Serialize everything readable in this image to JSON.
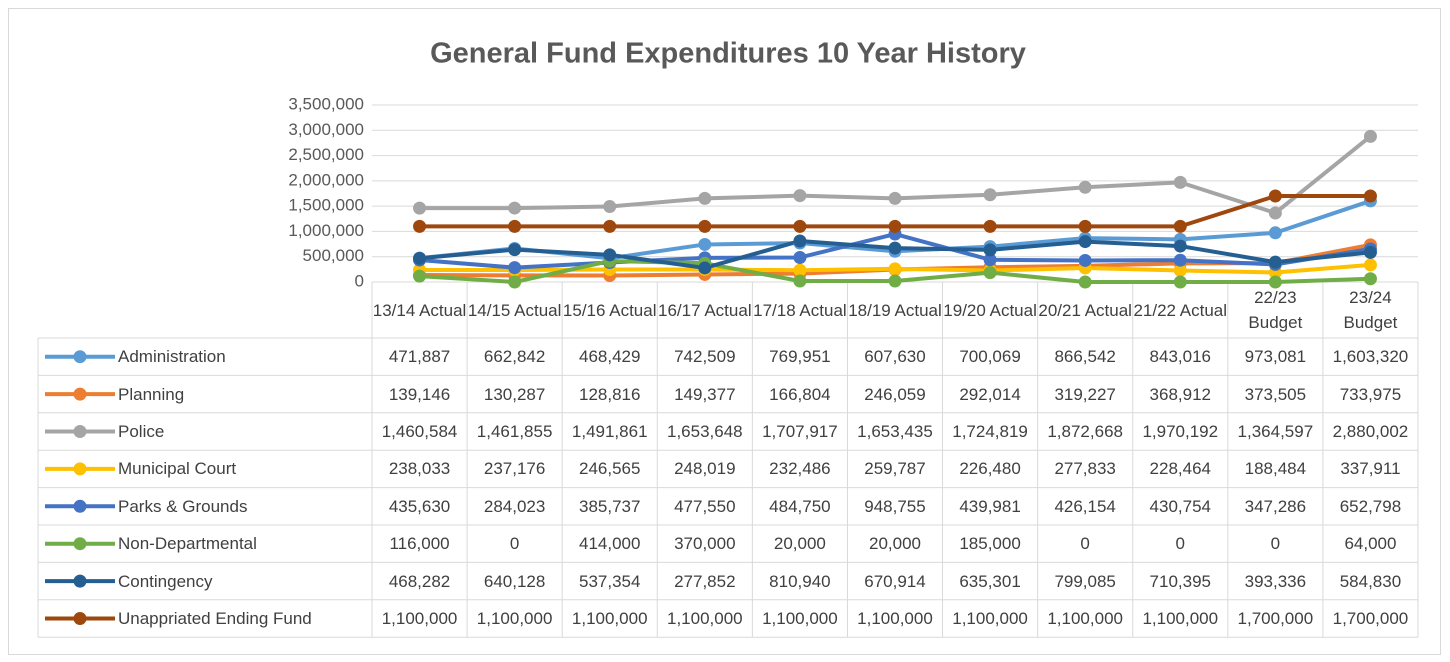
{
  "chart_data": {
    "type": "line",
    "title": "General Fund Expenditures 10 Year History",
    "categories": [
      "13/14 Actual",
      "14/15 Actual",
      "15/16 Actual",
      "16/17 Actual",
      "17/18 Actual",
      "18/19 Actual",
      "19/20 Actual",
      "20/21 Actual",
      "21/22 Actual",
      "22/23 Budget",
      "23/24 Budget"
    ],
    "ylim": [
      0,
      3500000
    ],
    "yticks": [
      0,
      {
        "value": 500000,
        "label": "500,000"
      },
      {
        "value": 1000000,
        "label": "1,000,000"
      },
      {
        "value": 1500000,
        "label": "1,500,000"
      },
      {
        "value": 2000000,
        "label": "2,000,000"
      },
      {
        "value": 2500000,
        "label": "2,500,000"
      },
      {
        "value": 3000000,
        "label": "3,000,000"
      },
      {
        "value": 3500000,
        "label": "3,500,000"
      }
    ],
    "grid": true,
    "series": [
      {
        "name": "Administration",
        "color": "#5b9bd5",
        "values": [
          471887,
          662842,
          468429,
          742509,
          769951,
          607630,
          700069,
          866542,
          843016,
          973081,
          1603320
        ],
        "value_labels": [
          "471,887",
          "662,842",
          "468,429",
          "742,509",
          "769,951",
          "607,630",
          "700,069",
          "866,542",
          "843,016",
          "973,081",
          "1,603,320"
        ]
      },
      {
        "name": "Planning",
        "color": "#ed7d31",
        "values": [
          139146,
          130287,
          128816,
          149377,
          166804,
          246059,
          292014,
          319227,
          368912,
          373505,
          733975
        ],
        "value_labels": [
          "139,146",
          "130,287",
          "128,816",
          "149,377",
          "166,804",
          "246,059",
          "292,014",
          "319,227",
          "368,912",
          "373,505",
          "733,975"
        ]
      },
      {
        "name": "Police",
        "color": "#a5a5a5",
        "values": [
          1460584,
          1461855,
          1491861,
          1653648,
          1707917,
          1653435,
          1724819,
          1872668,
          1970192,
          1364597,
          2880002
        ],
        "value_labels": [
          "1,460,584",
          "1,461,855",
          "1,491,861",
          "1,653,648",
          "1,707,917",
          "1,653,435",
          "1,724,819",
          "1,872,668",
          "1,970,192",
          "1,364,597",
          "2,880,002"
        ]
      },
      {
        "name": "Municipal Court",
        "color": "#ffc000",
        "values": [
          238033,
          237176,
          246565,
          248019,
          232486,
          259787,
          226480,
          277833,
          228464,
          188484,
          337911
        ],
        "value_labels": [
          "238,033",
          "237,176",
          "246,565",
          "248,019",
          "232,486",
          "259,787",
          "226,480",
          "277,833",
          "228,464",
          "188,484",
          "337,911"
        ]
      },
      {
        "name": "Parks & Grounds",
        "color": "#4472c4",
        "values": [
          435630,
          284023,
          385737,
          477550,
          484750,
          948755,
          439981,
          426154,
          430754,
          347286,
          652798
        ],
        "value_labels": [
          "435,630",
          "284,023",
          "385,737",
          "477,550",
          "484,750",
          "948,755",
          "439,981",
          "426,154",
          "430,754",
          "347,286",
          "652,798"
        ]
      },
      {
        "name": "Non-Departmental",
        "color": "#70ad47",
        "values": [
          116000,
          0,
          414000,
          370000,
          20000,
          20000,
          185000,
          0,
          0,
          0,
          64000
        ],
        "value_labels": [
          "116,000",
          "0",
          "414,000",
          "370,000",
          "20,000",
          "20,000",
          "185,000",
          "0",
          "0",
          "0",
          "64,000"
        ]
      },
      {
        "name": "Contingency",
        "color": "#255e91",
        "values": [
          468282,
          640128,
          537354,
          277852,
          810940,
          670914,
          635301,
          799085,
          710395,
          393336,
          584830
        ],
        "value_labels": [
          "468,282",
          "640,128",
          "537,354",
          "277,852",
          "810,940",
          "670,914",
          "635,301",
          "799,085",
          "710,395",
          "393,336",
          "584,830"
        ]
      },
      {
        "name": "Unappriated Ending Fund",
        "color": "#9e480e",
        "values": [
          1100000,
          1100000,
          1100000,
          1100000,
          1100000,
          1100000,
          1100000,
          1100000,
          1100000,
          1700000,
          1700000
        ],
        "value_labels": [
          "1,100,000",
          "1,100,000",
          "1,100,000",
          "1,100,000",
          "1,100,000",
          "1,100,000",
          "1,100,000",
          "1,100,000",
          "1,100,000",
          "1,700,000",
          "1,700,000"
        ]
      }
    ]
  }
}
